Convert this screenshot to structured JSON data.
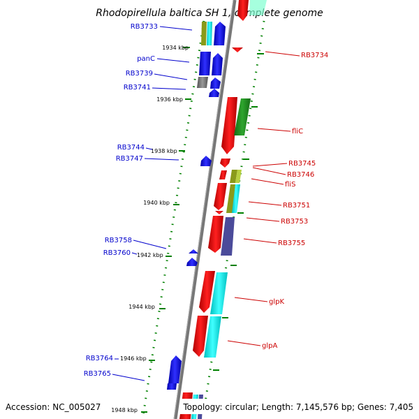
{
  "title": "Rhodopirellula baltica SH 1, complete genome",
  "footer": {
    "accession": "Accession: NC_005027",
    "topology": "Topology: circular; Length: 7,145,576 bp; Genes: 7,405"
  },
  "scale": [
    "1934 kbp",
    "1936 kbp",
    "1938 kbp",
    "1940 kbp",
    "1942 kbp",
    "1944 kbp",
    "1946 kbp",
    "1948 kbp"
  ],
  "left_genes": [
    "RB3733",
    "panC",
    "RB3739",
    "RB3741",
    "RB3744",
    "RB3747",
    "RB3758",
    "RB3760",
    "RB3764",
    "RB3765"
  ],
  "right_genes": [
    "RB3734",
    "fliC",
    "RB3745",
    "RB3746",
    "fliS",
    "RB3751",
    "RB3753",
    "RB3755",
    "glpK",
    "glpA"
  ],
  "colors": {
    "forward": "#0000ee",
    "reverse": "#ee0000",
    "backbone": "#888888",
    "cyan": "#00eeee",
    "green": "#228b22",
    "olive": "#8a9a1a",
    "purple": "#4b4b9a",
    "gray": "#777777",
    "tick": "#008000"
  }
}
